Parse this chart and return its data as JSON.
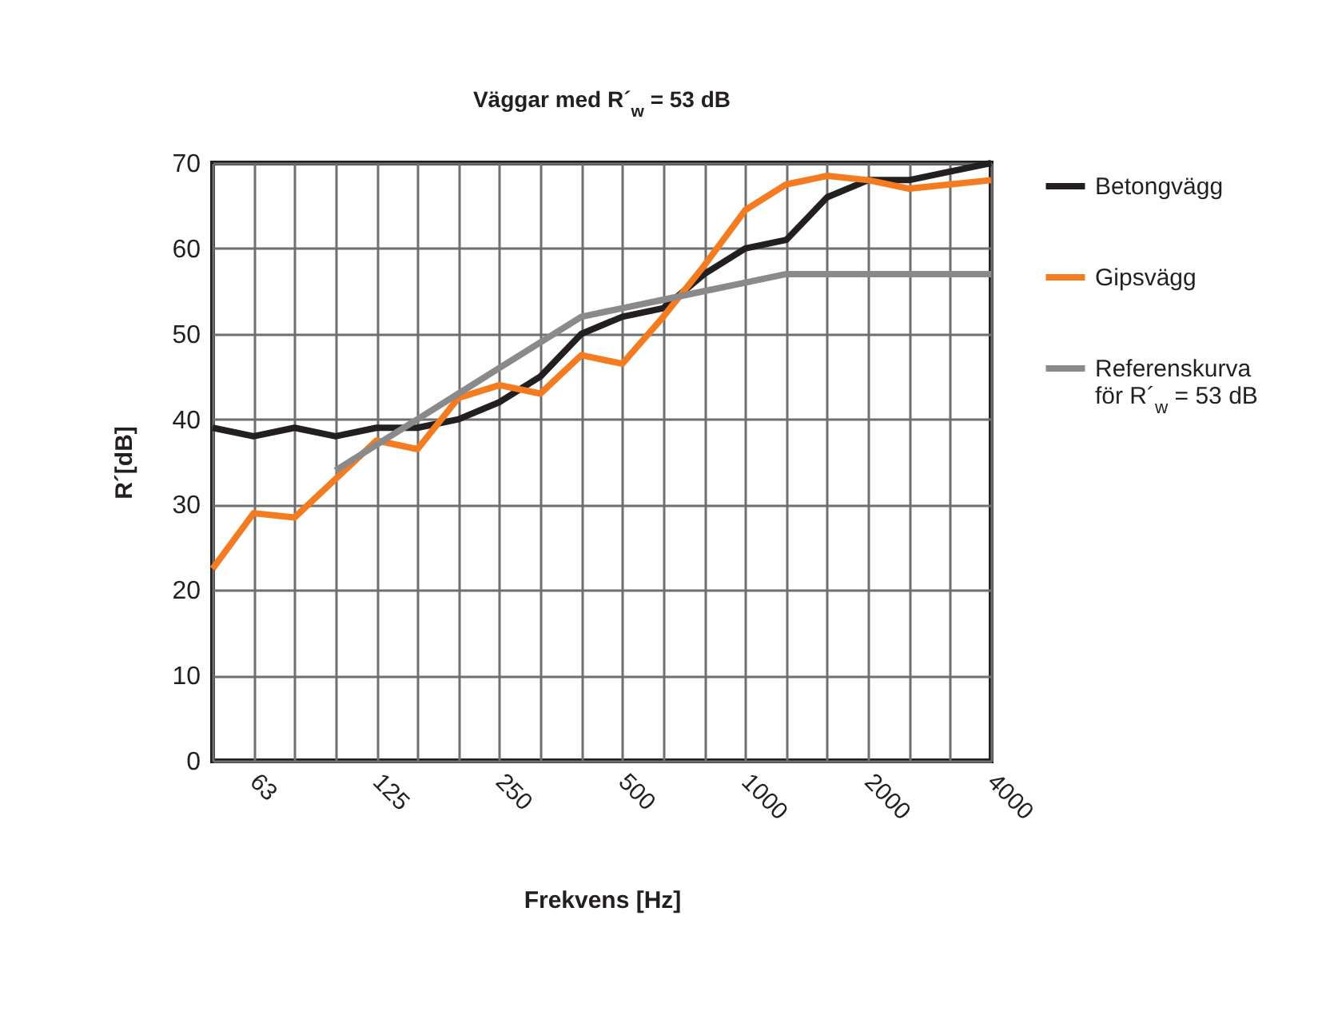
{
  "chart_data": {
    "type": "line",
    "title": "Väggar med R´$_{w}$ = 53 dB",
    "xlabel": "Frekvens [Hz]",
    "ylabel": "R´[dB]",
    "categories": [
      null,
      "63",
      null,
      null,
      "125",
      null,
      null,
      "250",
      null,
      null,
      "500",
      null,
      null,
      "1000",
      null,
      null,
      "2000",
      null,
      null,
      "4000"
    ],
    "series": [
      {
        "name": "Betongvägg",
        "color": "#231f20",
        "values": [
          39,
          38,
          39,
          38,
          39,
          39,
          40,
          42,
          45,
          50,
          52,
          53,
          57,
          60,
          61,
          66,
          68,
          68,
          69,
          70
        ]
      },
      {
        "name": "Gipsvägg",
        "color": "#f47b20",
        "values": [
          22.5,
          29,
          28.5,
          33,
          37.5,
          36.5,
          42.5,
          44,
          43,
          47.5,
          46.5,
          52,
          58,
          64.5,
          67.5,
          68.5,
          68,
          67,
          67.5,
          68
        ]
      },
      {
        "name": "Referenskurva för R´$_{w}$ = 53 dB",
        "color": "#8a8a8a",
        "values": [
          null,
          null,
          null,
          34,
          37,
          40,
          43,
          46,
          49,
          52,
          53,
          54,
          55,
          56,
          57,
          57,
          57,
          57,
          57,
          57
        ]
      }
    ],
    "ylim": [
      0,
      70
    ],
    "yticks": [
      0,
      10,
      20,
      30,
      40,
      50,
      60,
      70
    ],
    "grid": true,
    "legend": "right",
    "marker": "none",
    "line_style": "solid"
  }
}
